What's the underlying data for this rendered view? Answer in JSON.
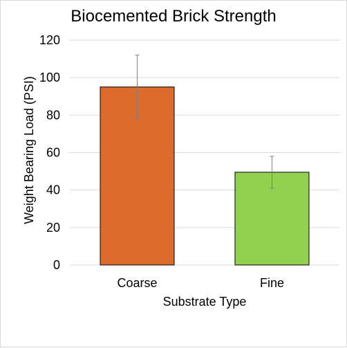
{
  "chart_data": {
    "type": "bar",
    "title": "Biocemented Brick Strength",
    "xlabel": "Substrate Type",
    "ylabel": "Weight Bearing Load (PSI)",
    "categories": [
      "Coarse",
      "Fine"
    ],
    "values": [
      95,
      49.5
    ],
    "error_low": [
      78,
      41
    ],
    "error_high": [
      112,
      58
    ],
    "ylim": [
      0,
      120
    ],
    "yticks": [
      0,
      20,
      40,
      60,
      80,
      100,
      120
    ],
    "ytick_labels": [
      "0",
      "20",
      "40",
      "60",
      "80",
      "100",
      "120"
    ],
    "grid": true,
    "legend": "none",
    "colors": [
      "#dd6b2b",
      "#92d050"
    ],
    "bar_edge_color": "#000000",
    "grid_color": "#d9d9d9",
    "error_bar_color": "#7f7f7f"
  }
}
